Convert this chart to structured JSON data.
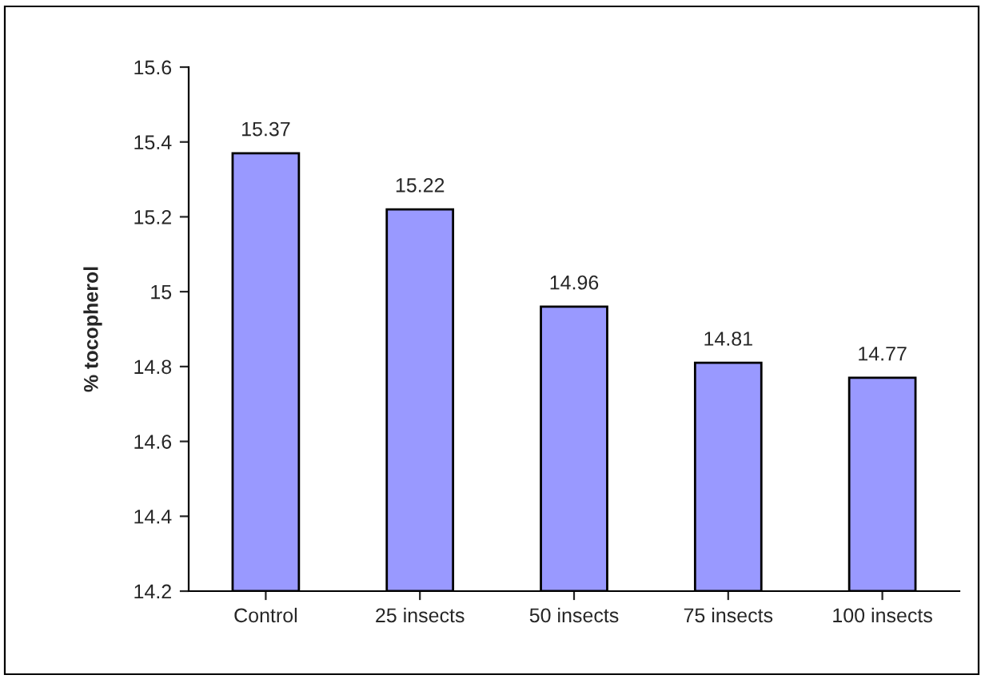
{
  "chart_data": {
    "type": "bar",
    "ylabel": "% tocopherol",
    "categories": [
      "Control",
      "25 insects",
      "50 insects",
      "75 insects",
      "100 insects"
    ],
    "values": [
      15.37,
      15.22,
      14.96,
      14.81,
      14.77
    ],
    "color": "#9999ff",
    "ylim": [
      14.2,
      15.6
    ],
    "yticks": [
      14.2,
      14.4,
      14.6,
      14.8,
      15,
      15.2,
      15.4,
      15.6
    ],
    "data_labels": true,
    "grid": false,
    "legend": false
  }
}
